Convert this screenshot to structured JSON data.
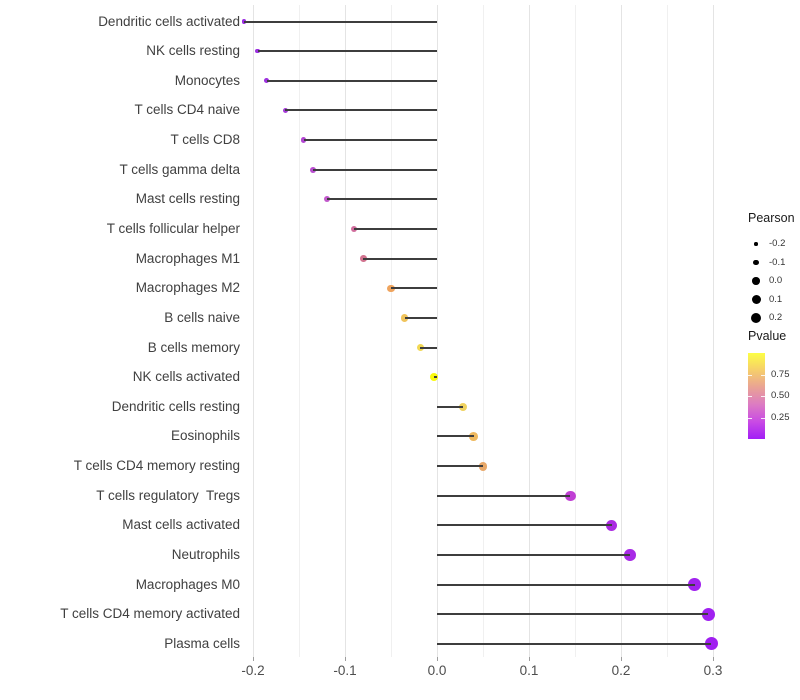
{
  "chart_data": {
    "type": "scatter",
    "variant": "lollipop",
    "orientation": "horizontal",
    "title": "",
    "xlabel": "",
    "ylabel": "",
    "xlim": [
      -0.225,
      0.33
    ],
    "x_tick_labels": [
      "-0.2",
      "-0.1",
      "0.0",
      "0.1",
      "0.2",
      "0.3"
    ],
    "x_tick_values": [
      -0.2,
      -0.1,
      0.0,
      0.1,
      0.2,
      0.3
    ],
    "minor_grid_step": 0.05,
    "grid": "vertical-only",
    "rows": [
      {
        "label": "Dendritic cells activated",
        "pearson": -0.21,
        "pvalue": 0.1,
        "color": "#9a2be2"
      },
      {
        "label": "NK cells resting",
        "pearson": -0.195,
        "pvalue": 0.12,
        "color": "#9b2fe0"
      },
      {
        "label": "Monocytes",
        "pearson": -0.185,
        "pvalue": 0.14,
        "color": "#9d32de"
      },
      {
        "label": "T cells CD4 naive",
        "pearson": -0.165,
        "pvalue": 0.18,
        "color": "#a43ad8"
      },
      {
        "label": "T cells CD8",
        "pearson": -0.145,
        "pvalue": 0.22,
        "color": "#b246d2"
      },
      {
        "label": "T cells gamma delta",
        "pearson": -0.135,
        "pvalue": 0.25,
        "color": "#b94ed0"
      },
      {
        "label": "Mast cells resting",
        "pearson": -0.12,
        "pvalue": 0.29,
        "color": "#c158cb"
      },
      {
        "label": "T cells follicular helper",
        "pearson": -0.09,
        "pvalue": 0.45,
        "color": "#d06c9c"
      },
      {
        "label": "Macrophages M1",
        "pearson": -0.08,
        "pvalue": 0.48,
        "color": "#d2738f"
      },
      {
        "label": "Macrophages M2",
        "pearson": -0.05,
        "pvalue": 0.64,
        "color": "#efa45e"
      },
      {
        "label": "B cells naive",
        "pearson": -0.035,
        "pvalue": 0.7,
        "color": "#f0c45c"
      },
      {
        "label": "B cells memory",
        "pearson": -0.018,
        "pvalue": 0.84,
        "color": "#f2d854"
      },
      {
        "label": "NK cells activated",
        "pearson": -0.003,
        "pvalue": 0.97,
        "color": "#fbfa0c"
      },
      {
        "label": "Dendritic cells resting",
        "pearson": 0.028,
        "pvalue": 0.8,
        "color": "#efd25f"
      },
      {
        "label": "Eosinophils",
        "pearson": 0.04,
        "pvalue": 0.68,
        "color": "#efb95f"
      },
      {
        "label": "T cells CD4 memory resting",
        "pearson": 0.05,
        "pvalue": 0.62,
        "color": "#e8a869"
      },
      {
        "label": "T cells regulatory  Tregs",
        "pearson": 0.145,
        "pvalue": 0.27,
        "color": "#c03fd4"
      },
      {
        "label": "Mast cells activated",
        "pearson": 0.19,
        "pvalue": 0.14,
        "color": "#ab2be2"
      },
      {
        "label": "Neutrophils",
        "pearson": 0.21,
        "pvalue": 0.13,
        "color": "#a82be6"
      },
      {
        "label": "Macrophages M0",
        "pearson": 0.28,
        "pvalue": 0.08,
        "color": "#a123ee"
      },
      {
        "label": "T cells CD4 memory activated",
        "pearson": 0.295,
        "pvalue": 0.07,
        "color": "#a021f0"
      },
      {
        "label": "Plasma cells",
        "pearson": 0.298,
        "pvalue": 0.07,
        "color": "#a01ff0"
      }
    ],
    "legend": {
      "position": "right",
      "size_legend": {
        "title": "Pearson",
        "entries": [
          "-0.2",
          "-0.1",
          "0.0",
          "0.1",
          "0.2"
        ],
        "key_color": "#000000"
      },
      "color_legend": {
        "title": "Pvalue",
        "tick_labels": [
          "0.75",
          "0.50",
          "0.25"
        ],
        "tick_values": [
          0.75,
          0.5,
          0.25
        ],
        "range": [
          0,
          1
        ],
        "gradient_top_to_bottom": [
          "#fcfe45",
          "#f6ce6b",
          "#e9a295",
          "#dc7bc3",
          "#c94be4",
          "#a21ef6"
        ]
      }
    },
    "style": {
      "stem_color": "#3d3d3d",
      "grid_major_color": "#e4e4e4",
      "grid_minor_color": "#f0f0f0",
      "axis_text_color": "#4d4d4d",
      "category_text_color": "#404040",
      "background": "#ffffff"
    }
  }
}
